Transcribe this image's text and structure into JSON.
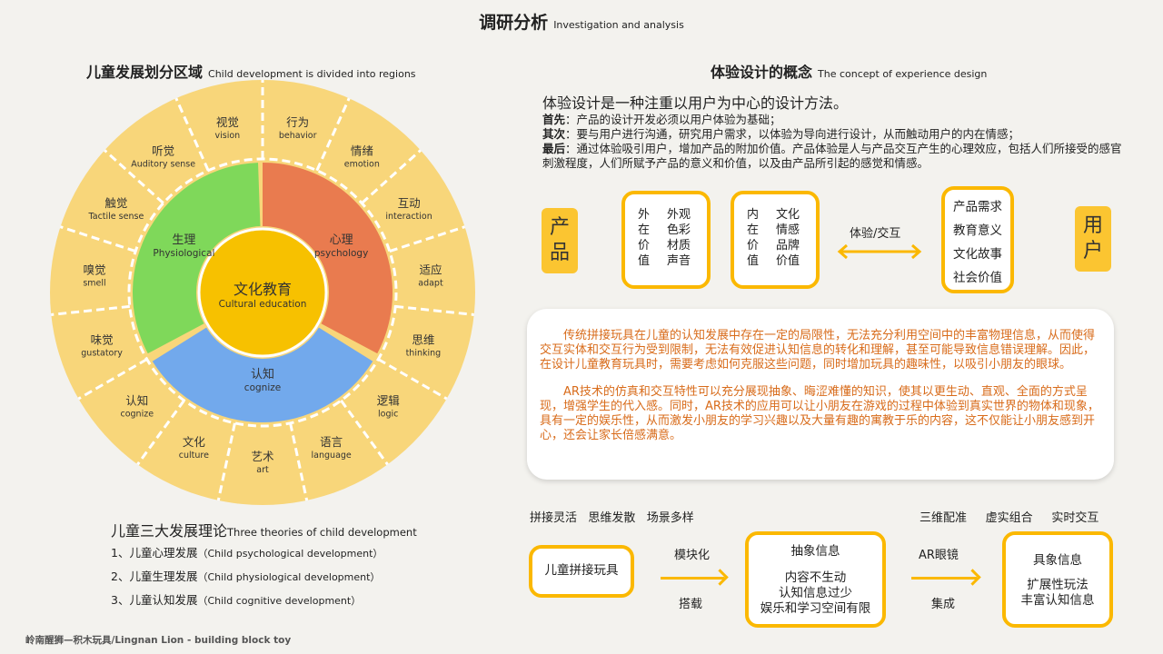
{
  "header": {
    "title_cn": "调研分析",
    "title_en": "Investigation and analysis"
  },
  "left": {
    "title_cn": "儿童发展划分区域",
    "title_en": "Child development is divided into regions",
    "center": {
      "cn": "文化教育",
      "en": "Cultural education",
      "color": "#f7c100"
    },
    "inner": [
      {
        "cn": "生理",
        "en": "Physiological",
        "color": "#7fd85a"
      },
      {
        "cn": "心理",
        "en": "psychology",
        "color": "#e97b4f"
      },
      {
        "cn": "认知",
        "en": "cognize",
        "color": "#72a9ec"
      }
    ],
    "ring_color": "#f8d67a",
    "outer": [
      {
        "cn": "行为",
        "en": "behavior"
      },
      {
        "cn": "情绪",
        "en": "emotion"
      },
      {
        "cn": "互动",
        "en": "interaction"
      },
      {
        "cn": "适应",
        "en": "adapt"
      },
      {
        "cn": "思维",
        "en": "thinking"
      },
      {
        "cn": "逻辑",
        "en": "logic"
      },
      {
        "cn": "语言",
        "en": "language"
      },
      {
        "cn": "艺术",
        "en": "art"
      },
      {
        "cn": "文化",
        "en": "culture"
      },
      {
        "cn": "认知",
        "en": "cognize"
      },
      {
        "cn": "味觉",
        "en": "gustatory"
      },
      {
        "cn": "嗅觉",
        "en": "smell"
      },
      {
        "cn": "触觉",
        "en": "Tactile sense"
      },
      {
        "cn": "听觉",
        "en": "Auditory sense"
      },
      {
        "cn": "视觉",
        "en": "vision"
      }
    ],
    "theories_title_cn": "儿童三大发展理论",
    "theories_title_en": "Three theories of child development",
    "theories": [
      {
        "cn": "1、儿童心理发展",
        "en": "（Child psychological development）"
      },
      {
        "cn": "2、儿童生理发展",
        "en": "（Child physiological development）"
      },
      {
        "cn": "3、儿童认知发展",
        "en": "（Child cognitive development）"
      }
    ]
  },
  "right": {
    "title_cn": "体验设计的概念",
    "title_en": "The concept of experience design",
    "lead": "体验设计是一种注重以用户为中心的设计方法。",
    "points": [
      {
        "k": "首先",
        "v": "：产品的设计开发必须以用户体验为基础；"
      },
      {
        "k": "其次",
        "v": "：要与用户进行沟通，研究用户需求，以体验为导向进行设计，从而触动用户的内在情感；"
      },
      {
        "k": "最后",
        "v": "：通过体验吸引用户，增加产品的附加价值。产品体验是人与产品交互产生的心理效应，包括人们所接受的感官刺激程度，人们所赋予产品的意义和价值，以及由产品所引起的感觉和情感。"
      }
    ],
    "product": "产品",
    "user": "用户",
    "outer_value": {
      "label": "外在价值",
      "items": "外观色彩材质声音"
    },
    "inner_value": {
      "label": "内在价值",
      "items": "文化情感品牌价值"
    },
    "interaction": "体验/交互",
    "needs": [
      "产品需求",
      "教育意义",
      "文化故事",
      "社会价值"
    ],
    "card": [
      "传统拼接玩具在儿童的认知发展中存在一定的局限性，无法充分利用空间中的丰富物理信息，从而使得交互实体和交互行为受到限制，无法有效促进认知信息的转化和理解，甚至可能导致信息错误理解。因此，在设计儿童教育玩具时，需要考虑如何克服这些问题，同时增加玩具的趣味性，以吸引小朋友的眼球。",
      "AR技术的仿真和交互特性可以充分展现抽象、晦涩难懂的知识，使其以更生动、直观、全面的方式呈现，增强学生的代入感。同时，AR技术的应用可以让小朋友在游戏的过程中体验到真实世界的物体和现象，具有一定的娱乐性，从而激发小朋友的学习兴趣以及大量有趣的寓教于乐的内容，这不仅能让小朋友感到开心，还会让家长倍感满意。"
    ],
    "flow": {
      "tags_left": "拼接灵活   思维发散   场景多样",
      "tags_right": "三维配准     虚实组合     实时交互",
      "box1": "儿童拼接玩具",
      "arrow1_top": "模块化",
      "arrow1_bottom": "搭载",
      "box2_title": "抽象信息",
      "box2_lines": [
        "内容不生动",
        "认知信息过少",
        "娱乐和学习空间有限"
      ],
      "arrow2_top": "AR眼镜",
      "arrow2_bottom": "集成",
      "box3_title": "具象信息",
      "box3_lines": [
        "扩展性玩法",
        "丰富认知信息"
      ]
    },
    "accent": "#fbb800"
  },
  "footer": "岭南醒狮—积木玩具/Lingnan Lion - building block toy"
}
